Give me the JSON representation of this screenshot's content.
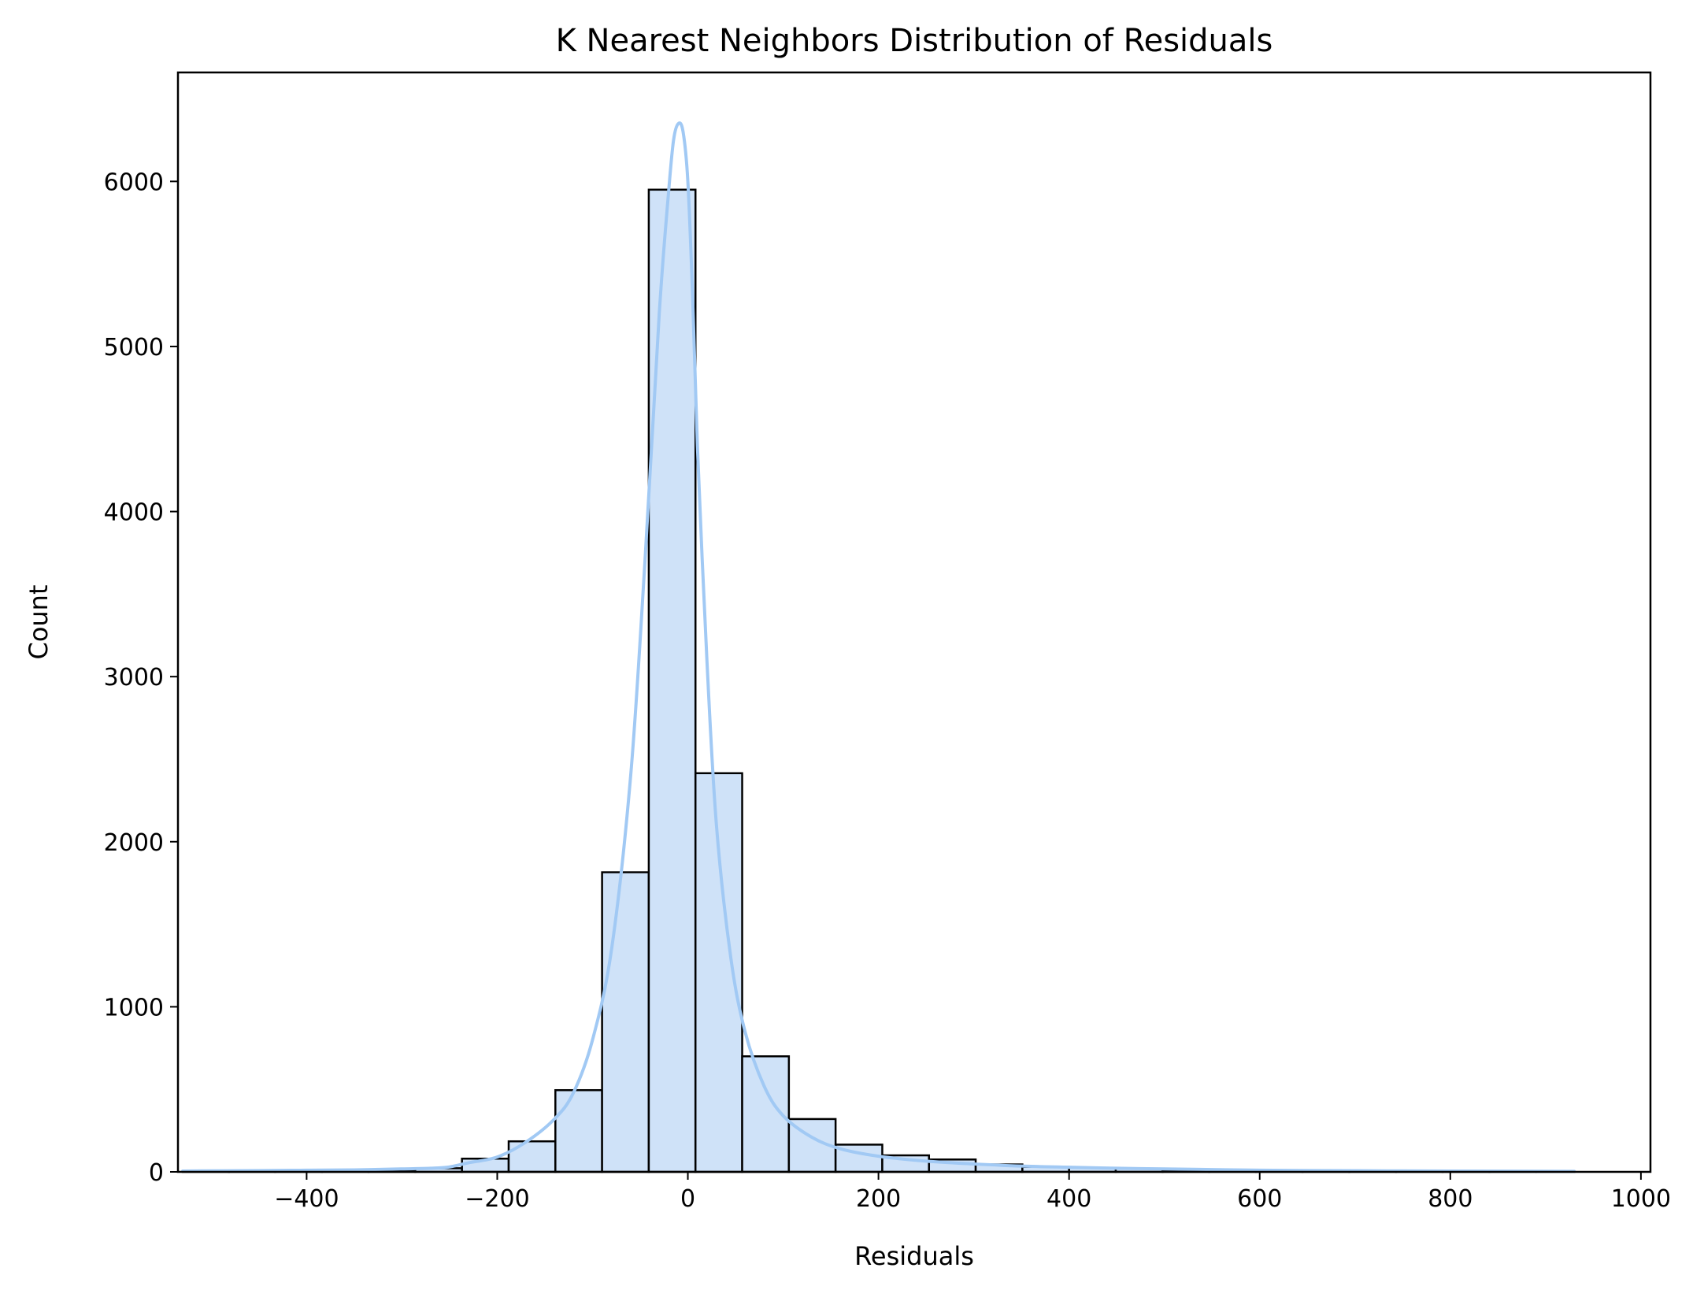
{
  "chart_data": {
    "type": "histogram",
    "title": "K Nearest Neighbors Distribution of Residuals",
    "xlabel": "Residuals",
    "ylabel": "Count",
    "xlim": [
      -535,
      1010
    ],
    "ylim": [
      0,
      6660
    ],
    "x_ticks": [
      -400,
      -200,
      0,
      200,
      400,
      600,
      800,
      1000
    ],
    "x_tick_labels": [
      "−400",
      "−200",
      "0",
      "200",
      "400",
      "600",
      "800",
      "1000"
    ],
    "y_ticks": [
      0,
      1000,
      2000,
      3000,
      4000,
      5000,
      6000
    ],
    "y_tick_labels": [
      "0",
      "1000",
      "2000",
      "3000",
      "4000",
      "5000",
      "6000"
    ],
    "bar_fill": "#cfe2f8",
    "bar_edge": "#000000",
    "kde_color": "#a1c9f4",
    "bins": [
      {
        "x0": -530,
        "x1": -481.5,
        "count": 2
      },
      {
        "x0": -481.5,
        "x1": -433,
        "count": 3
      },
      {
        "x0": -433,
        "x1": -384,
        "count": 3
      },
      {
        "x0": -384,
        "x1": -335,
        "count": 5
      },
      {
        "x0": -335,
        "x1": -286,
        "count": 8
      },
      {
        "x0": -286,
        "x1": -237,
        "count": 22
      },
      {
        "x0": -237,
        "x1": -188,
        "count": 80
      },
      {
        "x0": -188,
        "x1": -139,
        "count": 185
      },
      {
        "x0": -139,
        "x1": -90,
        "count": 495
      },
      {
        "x0": -90,
        "x1": -41,
        "count": 1815
      },
      {
        "x0": -41,
        "x1": 8,
        "count": 5950
      },
      {
        "x0": 8,
        "x1": 57,
        "count": 2415
      },
      {
        "x0": 57,
        "x1": 106,
        "count": 700
      },
      {
        "x0": 106,
        "x1": 155,
        "count": 320
      },
      {
        "x0": 155,
        "x1": 204,
        "count": 165
      },
      {
        "x0": 204,
        "x1": 253,
        "count": 100
      },
      {
        "x0": 253,
        "x1": 302,
        "count": 75
      },
      {
        "x0": 302,
        "x1": 351,
        "count": 45
      },
      {
        "x0": 351,
        "x1": 400,
        "count": 30
      },
      {
        "x0": 400,
        "x1": 449,
        "count": 25
      },
      {
        "x0": 449,
        "x1": 498,
        "count": 20
      },
      {
        "x0": 498,
        "x1": 547,
        "count": 12
      },
      {
        "x0": 547,
        "x1": 596,
        "count": 8
      },
      {
        "x0": 596,
        "x1": 645,
        "count": 5
      },
      {
        "x0": 645,
        "x1": 694,
        "count": 4
      },
      {
        "x0": 694,
        "x1": 743,
        "count": 3
      },
      {
        "x0": 743,
        "x1": 792,
        "count": 2
      },
      {
        "x0": 792,
        "x1": 841,
        "count": 2
      },
      {
        "x0": 841,
        "x1": 890,
        "count": 2
      },
      {
        "x0": 890,
        "x1": 930,
        "count": 1
      }
    ],
    "kde": {
      "x": [
        -530,
        -450,
        -400,
        -350,
        -300,
        -270,
        -250,
        -230,
        -200,
        -170,
        -140,
        -120,
        -100,
        -80,
        -60,
        -45,
        -30,
        -20,
        -15,
        -10,
        -5,
        0,
        5,
        10,
        20,
        30,
        45,
        60,
        80,
        100,
        130,
        160,
        200,
        250,
        300,
        350,
        400,
        450,
        500,
        550,
        600,
        700,
        800,
        930
      ],
      "y": [
        5,
        8,
        10,
        12,
        18,
        22,
        30,
        55,
        90,
        180,
        320,
        480,
        800,
        1350,
        2400,
        3700,
        5200,
        5950,
        6250,
        6350,
        6300,
        6000,
        5300,
        4400,
        3100,
        2100,
        1300,
        850,
        520,
        340,
        210,
        140,
        95,
        65,
        48,
        35,
        28,
        22,
        18,
        14,
        10,
        7,
        5,
        3
      ]
    }
  }
}
